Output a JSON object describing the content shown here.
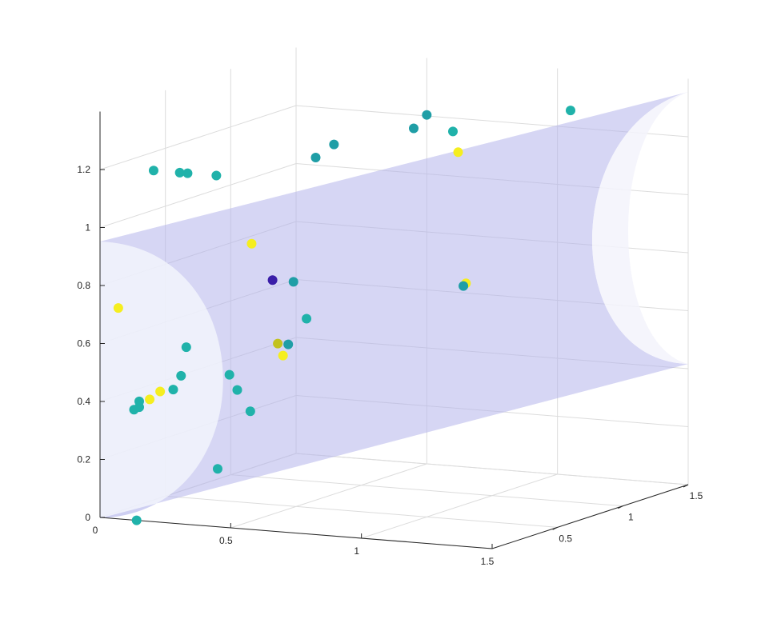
{
  "chart_data": {
    "type": "scatter",
    "title": "",
    "xlabel": "",
    "ylabel": "",
    "zlabel": "",
    "xlim": [
      0,
      1.5
    ],
    "ylim": [
      0,
      1.5
    ],
    "zlim": [
      0,
      1.4
    ],
    "x_ticks": [
      "0",
      "0.5",
      "1",
      "1.5"
    ],
    "y_ticks": [
      "0",
      "0.5",
      "1",
      "1.5"
    ],
    "z_ticks": [
      "0",
      "0.2",
      "0.4",
      "0.6",
      "0.8",
      "1",
      "1.2"
    ],
    "grid": true,
    "surface": {
      "shape": "translucent half-pipe surface",
      "color": "#b4b4eb"
    },
    "points": [
      {
        "x": 0.12,
        "y": 0.17,
        "z": 1.18,
        "color": "#20b2aa"
      },
      {
        "x": 0.22,
        "y": 0.17,
        "z": 1.18,
        "color": "#20b2aa"
      },
      {
        "x": 0.25,
        "y": 0.17,
        "z": 1.18,
        "color": "#20b2aa"
      },
      {
        "x": 0.36,
        "y": 0.17,
        "z": 1.18,
        "color": "#20b2aa"
      },
      {
        "x": 0.05,
        "y": 0.04,
        "z": 0.72,
        "color": "#f5ee1f"
      },
      {
        "x": 0.3,
        "y": 0.06,
        "z": 0.6,
        "color": "#20b2aa"
      },
      {
        "x": 0.4,
        "y": 0.36,
        "z": 0.92,
        "color": "#f5ee1f"
      },
      {
        "x": 0.48,
        "y": 0.36,
        "z": 0.8,
        "color": "#3a1ea8"
      },
      {
        "x": 0.56,
        "y": 0.36,
        "z": 0.8,
        "color": "#1f9ea6"
      },
      {
        "x": 0.55,
        "y": 0.55,
        "z": 1.2,
        "color": "#1f9ea6"
      },
      {
        "x": 0.62,
        "y": 0.55,
        "z": 1.25,
        "color": "#1f9ea6"
      },
      {
        "x": 0.85,
        "y": 0.7,
        "z": 1.3,
        "color": "#1f9ea6"
      },
      {
        "x": 0.9,
        "y": 0.7,
        "z": 1.35,
        "color": "#1f9ea6"
      },
      {
        "x": 1.0,
        "y": 0.7,
        "z": 1.3,
        "color": "#20b2aa"
      },
      {
        "x": 1.3,
        "y": 1.0,
        "z": 1.35,
        "color": "#20b2aa"
      },
      {
        "x": 1.02,
        "y": 0.7,
        "z": 1.23,
        "color": "#f5ee1f"
      },
      {
        "x": 1.05,
        "y": 0.7,
        "z": 0.78,
        "color": "#f5ee1f"
      },
      {
        "x": 1.04,
        "y": 0.7,
        "z": 0.77,
        "color": "#1f9ea6"
      },
      {
        "x": 0.62,
        "y": 0.34,
        "z": 0.68,
        "color": "#20b2aa"
      },
      {
        "x": 0.52,
        "y": 0.32,
        "z": 0.59,
        "color": "#c2c21f"
      },
      {
        "x": 0.56,
        "y": 0.32,
        "z": 0.59,
        "color": "#1f9ea6"
      },
      {
        "x": 0.54,
        "y": 0.32,
        "z": 0.55,
        "color": "#f5ee1f"
      },
      {
        "x": 0.28,
        "y": 0.06,
        "z": 0.5,
        "color": "#20b2aa"
      },
      {
        "x": 0.25,
        "y": 0.06,
        "z": 0.45,
        "color": "#20b2aa"
      },
      {
        "x": 0.2,
        "y": 0.06,
        "z": 0.44,
        "color": "#f5ee1f"
      },
      {
        "x": 0.16,
        "y": 0.06,
        "z": 0.41,
        "color": "#f5ee1f"
      },
      {
        "x": 0.42,
        "y": 0.15,
        "z": 0.5,
        "color": "#20b2aa"
      },
      {
        "x": 0.45,
        "y": 0.15,
        "z": 0.45,
        "color": "#20b2aa"
      },
      {
        "x": 0.5,
        "y": 0.15,
        "z": 0.38,
        "color": "#20b2aa"
      },
      {
        "x": 0.12,
        "y": 0.06,
        "z": 0.4,
        "color": "#20b2aa"
      },
      {
        "x": 0.12,
        "y": 0.06,
        "z": 0.38,
        "color": "#20b2aa"
      },
      {
        "x": 0.1,
        "y": 0.06,
        "z": 0.37,
        "color": "#20b2aa"
      },
      {
        "x": 0.45,
        "y": 0.0,
        "z": 0.2,
        "color": "#20b2aa"
      },
      {
        "x": 0.14,
        "y": 0.0,
        "z": 0.0,
        "color": "#20b2aa"
      }
    ]
  }
}
